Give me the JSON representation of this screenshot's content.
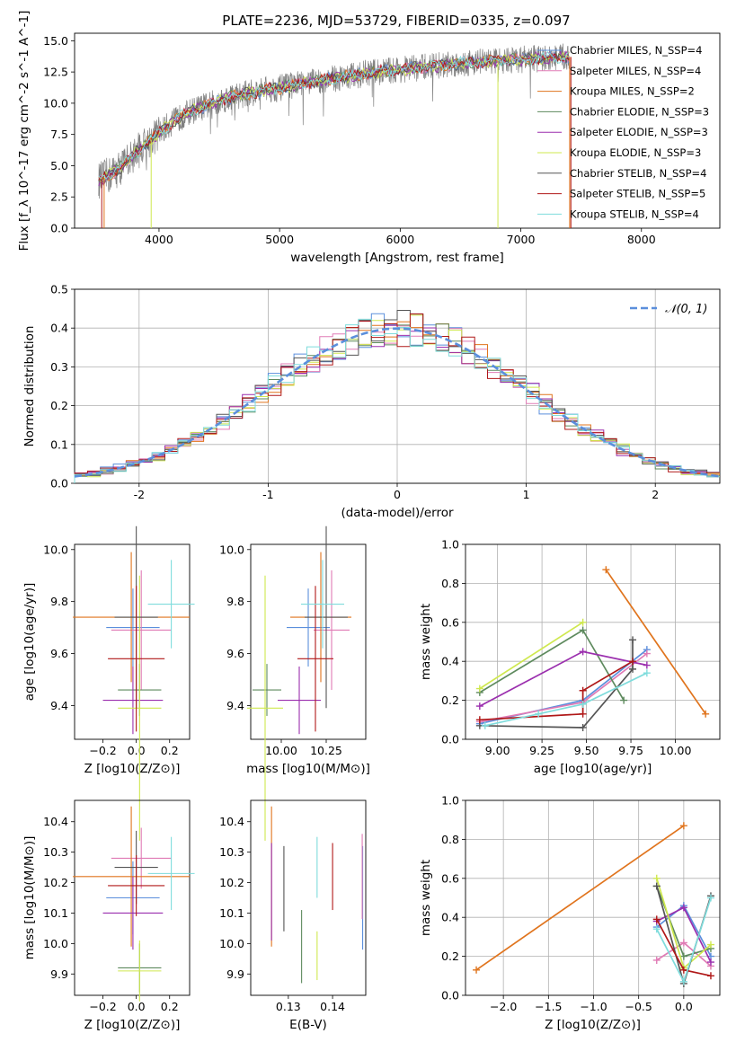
{
  "figure_title": "PLATE=2236, MJD=53729, FIBERID=0335, z=0.097",
  "colors": {
    "Chabrier MILES": "#5b8fdc",
    "Salpeter MILES": "#e07bb5",
    "Kroupa MILES": "#e0741d",
    "Chabrier ELODIE": "#5e8a5e",
    "Salpeter ELODIE": "#9b2fae",
    "Kroupa ELODIE": "#cfe84f",
    "Chabrier STELIB": "#555555",
    "Salpeter STELIB": "#b01818",
    "Kroupa STELIB": "#7fdcdc",
    "data": "#808080",
    "normal": "#5b8fdc"
  },
  "chart_data": [
    {
      "id": "spectrum",
      "type": "line",
      "title": "PLATE=2236, MJD=53729, FIBERID=0335, z=0.097",
      "xlabel": "wavelength [Angstrom, rest frame]",
      "ylabel": "Flux [f_λ 10^-17 erg cm^-2 s^-1 A^-1]",
      "xlim": [
        3300,
        8650
      ],
      "ylim": [
        0,
        15.6
      ],
      "xticks": [
        4000,
        5000,
        6000,
        7000,
        8000
      ],
      "yticks": [
        0.0,
        2.5,
        5.0,
        7.5,
        10.0,
        12.5,
        15.0
      ],
      "legend_position": "right",
      "legend": [
        "Chabrier MILES, N_SSP=4",
        "Salpeter MILES, N_SSP=4",
        "Kroupa MILES, N_SSP=2",
        "Chabrier ELODIE, N_SSP=3",
        "Salpeter ELODIE, N_SSP=3",
        "Kroupa ELODIE, N_SSP=3",
        "Chabrier STELIB, N_SSP=4",
        "Salpeter STELIB, N_SSP=5",
        "Kroupa STELIB, N_SSP=4"
      ],
      "model_curve": {
        "x": [
          3500,
          3600,
          3700,
          3800,
          3900,
          4000,
          4100,
          4200,
          4300,
          4400,
          4500,
          4600,
          4700,
          4800,
          4900,
          5000,
          5200,
          5400,
          5600,
          5800,
          6000,
          6200,
          6400,
          6600,
          6800,
          7000,
          7200,
          7400
        ],
        "y": [
          3.8,
          4.3,
          5.0,
          6.0,
          6.8,
          7.6,
          8.4,
          9.0,
          9.5,
          9.8,
          10.2,
          10.5,
          10.7,
          10.9,
          11.1,
          11.2,
          11.6,
          11.9,
          12.2,
          12.5,
          12.7,
          12.9,
          13.1,
          13.3,
          13.4,
          13.5,
          13.6,
          13.7
        ]
      }
    },
    {
      "id": "residuals",
      "type": "histogram",
      "xlabel": "(data-model)/error",
      "ylabel": "Normed distribution",
      "xlim": [
        -2.5,
        2.5
      ],
      "ylim": [
        0,
        0.5
      ],
      "xticks": [
        -2,
        -1,
        0,
        1,
        2
      ],
      "yticks": [
        0.0,
        0.1,
        0.2,
        0.3,
        0.4,
        0.5
      ],
      "bins": 50,
      "grid": true,
      "legend": [
        "𝒩(0, 1)"
      ],
      "legend_position": "top-right"
    },
    {
      "id": "age_vs_Z",
      "type": "errorbar",
      "xlabel": "Z [log10(Z/Z⊙)]",
      "ylabel": "age  [log10(age/yr)]",
      "xlim": [
        -0.37,
        0.32
      ],
      "ylim": [
        9.27,
        10.02
      ],
      "xticks": [
        -0.2,
        0.0,
        0.2
      ],
      "xticklabels": [
        "−0.2",
        "0.0",
        "0.2"
      ],
      "yticks": [
        9.4,
        9.6,
        9.8,
        10.0
      ],
      "points": [
        {
          "model": "Chabrier MILES",
          "x": -0.02,
          "xerr": 0.16,
          "y": 9.7,
          "yerr": 0.15
        },
        {
          "model": "Salpeter MILES",
          "x": 0.03,
          "xerr": 0.18,
          "y": 9.69,
          "yerr": 0.23
        },
        {
          "model": "Kroupa MILES",
          "x": -0.03,
          "xerr": 0.35,
          "y": 9.74,
          "yerr": 0.25
        },
        {
          "model": "Chabrier ELODIE",
          "x": 0.02,
          "xerr": 0.13,
          "y": 9.46,
          "yerr": 0.1
        },
        {
          "model": "Salpeter ELODIE",
          "x": -0.02,
          "xerr": 0.18,
          "y": 9.42,
          "yerr": 0.13
        },
        {
          "model": "Kroupa ELODIE",
          "x": 0.02,
          "xerr": 0.13,
          "y": 9.39,
          "yerr": 0.51
        },
        {
          "model": "Chabrier STELIB",
          "x": 0.0,
          "xerr": 0.13,
          "y": 9.74,
          "yerr": 0.35
        },
        {
          "model": "Salpeter STELIB",
          "x": 0.0,
          "xerr": 0.17,
          "y": 9.58,
          "yerr": 0.28
        },
        {
          "model": "Kroupa STELIB",
          "x": 0.21,
          "xerr": 0.14,
          "y": 9.79,
          "yerr": 0.17
        }
      ]
    },
    {
      "id": "age_vs_mass",
      "type": "errorbar",
      "xlabel": "mass [log10(M/M⊙)]",
      "ylabel": "",
      "xlim": [
        9.83,
        10.47
      ],
      "ylim": [
        9.27,
        10.02
      ],
      "xticks": [
        10.0,
        10.25
      ],
      "xticklabels": [
        "10.00",
        "10.25"
      ],
      "yticks": [
        9.4,
        9.6,
        9.8,
        10.0
      ],
      "points": [
        {
          "model": "Chabrier MILES",
          "x": 10.15,
          "xerr": 0.12,
          "y": 9.7,
          "yerr": 0.15
        },
        {
          "model": "Salpeter MILES",
          "x": 10.28,
          "xerr": 0.1,
          "y": 9.69,
          "yerr": 0.23
        },
        {
          "model": "Kroupa MILES",
          "x": 10.22,
          "xerr": 0.17,
          "y": 9.74,
          "yerr": 0.25
        },
        {
          "model": "Chabrier ELODIE",
          "x": 9.92,
          "xerr": 0.08,
          "y": 9.46,
          "yerr": 0.1
        },
        {
          "model": "Salpeter ELODIE",
          "x": 10.1,
          "xerr": 0.12,
          "y": 9.42,
          "yerr": 0.13
        },
        {
          "model": "Kroupa ELODIE",
          "x": 9.91,
          "xerr": 0.1,
          "y": 9.39,
          "yerr": 0.51
        },
        {
          "model": "Chabrier STELIB",
          "x": 10.25,
          "xerr": 0.12,
          "y": 9.74,
          "yerr": 0.35
        },
        {
          "model": "Salpeter STELIB",
          "x": 10.19,
          "xerr": 0.1,
          "y": 9.58,
          "yerr": 0.28
        },
        {
          "model": "Kroupa STELIB",
          "x": 10.23,
          "xerr": 0.12,
          "y": 9.79,
          "yerr": 0.17
        }
      ]
    },
    {
      "id": "weight_vs_age",
      "type": "line",
      "xlabel": "age  [log10(age/yr)]",
      "ylabel": "mass weight",
      "xlim": [
        8.82,
        10.25
      ],
      "ylim": [
        0,
        1.0
      ],
      "xticks": [
        9.0,
        9.25,
        9.5,
        9.75,
        10.0
      ],
      "xticklabels": [
        "9.00",
        "9.25",
        "9.50",
        "9.75",
        "10.00"
      ],
      "yticks": [
        0.0,
        0.2,
        0.4,
        0.6,
        0.8,
        1.0
      ],
      "grid": true,
      "series": [
        {
          "model": "Chabrier MILES",
          "x": [
            8.9,
            9.48,
            9.84
          ],
          "y": [
            0.08,
            0.2,
            0.46
          ]
        },
        {
          "model": "Salpeter MILES",
          "x": [
            8.9,
            9.48,
            9.84
          ],
          "y": [
            0.09,
            0.19,
            0.44
          ]
        },
        {
          "model": "Kroupa MILES",
          "x": [
            9.61,
            10.17
          ],
          "y": [
            0.87,
            0.13
          ]
        },
        {
          "model": "Chabrier ELODIE",
          "x": [
            8.9,
            9.48,
            9.71
          ],
          "y": [
            0.24,
            0.56,
            0.2
          ]
        },
        {
          "model": "Salpeter ELODIE",
          "x": [
            8.9,
            9.48,
            9.84
          ],
          "y": [
            0.17,
            0.45,
            0.38
          ]
        },
        {
          "model": "Kroupa ELODIE",
          "x": [
            8.9,
            9.48
          ],
          "y": [
            0.26,
            0.6
          ]
        },
        {
          "model": "Chabrier STELIB",
          "x": [
            8.9,
            9.48,
            9.76,
            9.76
          ],
          "y": [
            0.07,
            0.06,
            0.36,
            0.51
          ]
        },
        {
          "model": "Salpeter STELIB",
          "x": [
            8.9,
            9.48,
            9.48,
            9.76
          ],
          "y": [
            0.1,
            0.13,
            0.25,
            0.4
          ]
        },
        {
          "model": "Kroupa STELIB",
          "x": [
            8.93,
            9.23,
            9.48,
            9.84
          ],
          "y": [
            0.07,
            0.13,
            0.18,
            0.34
          ]
        }
      ]
    },
    {
      "id": "mass_vs_Z",
      "type": "errorbar",
      "xlabel": "Z [log10(Z/Z⊙)]",
      "ylabel": "mass [log10(M/M⊙)]",
      "xlim": [
        -0.37,
        0.32
      ],
      "ylim": [
        9.83,
        10.47
      ],
      "xticks": [
        -0.2,
        0.0,
        0.2
      ],
      "xticklabels": [
        "−0.2",
        "0.0",
        "0.2"
      ],
      "yticks": [
        9.9,
        10.0,
        10.1,
        10.2,
        10.3,
        10.4
      ],
      "points": [
        {
          "model": "Chabrier MILES",
          "x": -0.02,
          "xerr": 0.16,
          "y": 10.15,
          "yerr": 0.12
        },
        {
          "model": "Salpeter MILES",
          "x": 0.03,
          "xerr": 0.18,
          "y": 10.28,
          "yerr": 0.1
        },
        {
          "model": "Kroupa MILES",
          "x": -0.03,
          "xerr": 0.35,
          "y": 10.22,
          "yerr": 0.23
        },
        {
          "model": "Chabrier ELODIE",
          "x": 0.02,
          "xerr": 0.13,
          "y": 9.92,
          "yerr": 0.08
        },
        {
          "model": "Salpeter ELODIE",
          "x": -0.02,
          "xerr": 0.18,
          "y": 10.1,
          "yerr": 0.12
        },
        {
          "model": "Kroupa ELODIE",
          "x": 0.02,
          "xerr": 0.13,
          "y": 9.91,
          "yerr": 0.1
        },
        {
          "model": "Chabrier STELIB",
          "x": 0.0,
          "xerr": 0.13,
          "y": 10.25,
          "yerr": 0.12
        },
        {
          "model": "Salpeter STELIB",
          "x": 0.0,
          "xerr": 0.17,
          "y": 10.19,
          "yerr": 0.1
        },
        {
          "model": "Kroupa STELIB",
          "x": 0.21,
          "xerr": 0.14,
          "y": 10.23,
          "yerr": 0.12
        }
      ]
    },
    {
      "id": "mass_vs_ebv",
      "type": "errorbar",
      "xlabel": "E(B-V)",
      "ylabel": "",
      "xlim": [
        0.1215,
        0.1475
      ],
      "ylim": [
        9.83,
        10.47
      ],
      "xticks": [
        0.13,
        0.14
      ],
      "xticklabels": [
        "0.13",
        "0.14"
      ],
      "yticks": [
        9.9,
        10.0,
        10.1,
        10.2,
        10.3,
        10.4
      ],
      "points": [
        {
          "model": "Chabrier MILES",
          "x": 0.1468,
          "y": 10.15,
          "yerr": 0.17
        },
        {
          "model": "Salpeter MILES",
          "x": 0.1467,
          "y": 10.22,
          "yerr": 0.14
        },
        {
          "model": "Kroupa MILES",
          "x": 0.1262,
          "y": 10.22,
          "yerr": 0.23
        },
        {
          "model": "Chabrier ELODIE",
          "x": 0.133,
          "y": 9.99,
          "yerr": 0.12
        },
        {
          "model": "Salpeter ELODIE",
          "x": 0.1262,
          "y": 10.17,
          "yerr": 0.16
        },
        {
          "model": "Kroupa ELODIE",
          "x": 0.1365,
          "y": 9.96,
          "yerr": 0.08
        },
        {
          "model": "Chabrier STELIB",
          "x": 0.129,
          "y": 10.18,
          "yerr": 0.14
        },
        {
          "model": "Salpeter STELIB",
          "x": 0.14,
          "y": 10.22,
          "yerr": 0.11
        },
        {
          "model": "Kroupa STELIB",
          "x": 0.1365,
          "y": 10.25,
          "yerr": 0.1
        }
      ]
    },
    {
      "id": "weight_vs_Z",
      "type": "line",
      "xlabel": "Z [log10(Z/Z⊙)]",
      "ylabel": "mass weight",
      "xlim": [
        -2.42,
        0.4
      ],
      "ylim": [
        0,
        1.0
      ],
      "xticks": [
        -2.0,
        -1.5,
        -1.0,
        -0.5,
        0.0
      ],
      "xticklabels": [
        "−2.0",
        "−1.5",
        "−1.0",
        "−0.5",
        "0.0"
      ],
      "yticks": [
        0.0,
        0.2,
        0.4,
        0.6,
        0.8,
        1.0
      ],
      "grid": true,
      "series": [
        {
          "model": "Chabrier MILES",
          "x": [
            -0.3,
            0.0,
            0.3
          ],
          "y": [
            0.35,
            0.46,
            0.2
          ]
        },
        {
          "model": "Salpeter MILES",
          "x": [
            -0.3,
            0.0,
            0.3
          ],
          "y": [
            0.18,
            0.27,
            0.15
          ]
        },
        {
          "model": "Kroupa MILES",
          "x": [
            -2.3,
            0.0
          ],
          "y": [
            0.13,
            0.87
          ]
        },
        {
          "model": "Chabrier ELODIE",
          "x": [
            -0.3,
            0.0,
            0.3
          ],
          "y": [
            0.56,
            0.2,
            0.24
          ]
        },
        {
          "model": "Salpeter ELODIE",
          "x": [
            -0.3,
            0.0,
            0.3
          ],
          "y": [
            0.38,
            0.45,
            0.17
          ]
        },
        {
          "model": "Kroupa ELODIE",
          "x": [
            -0.3,
            0.0,
            0.3
          ],
          "y": [
            0.6,
            0.14,
            0.26
          ]
        },
        {
          "model": "Chabrier STELIB",
          "x": [
            -0.3,
            0.0,
            0.3
          ],
          "y": [
            0.56,
            0.06,
            0.51
          ]
        },
        {
          "model": "Salpeter STELIB",
          "x": [
            -0.3,
            0.0,
            0.3
          ],
          "y": [
            0.39,
            0.13,
            0.1
          ]
        },
        {
          "model": "Kroupa STELIB",
          "x": [
            -0.3,
            0.0,
            0.3
          ],
          "y": [
            0.34,
            0.07,
            0.5
          ]
        }
      ]
    }
  ]
}
